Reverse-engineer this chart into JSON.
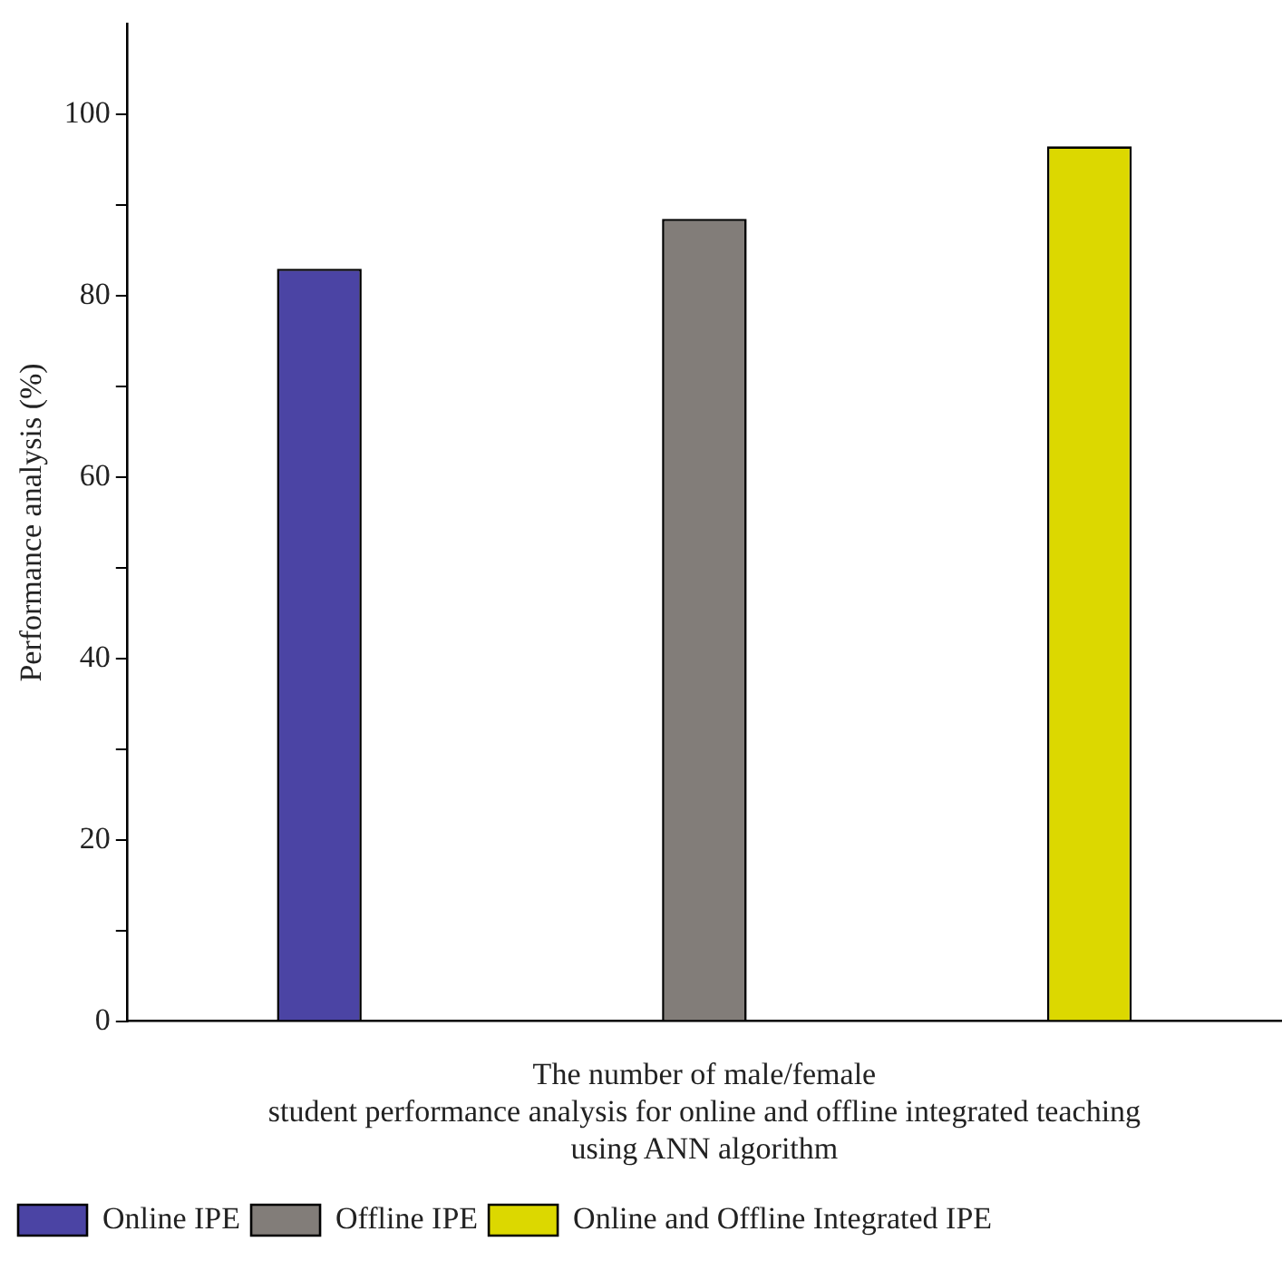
{
  "chart_data": {
    "type": "bar",
    "ylabel": "Performance analysis (%)",
    "xlabel": "The number of male/female\nstudent performance analysis for online and offline integrated teaching\nusing ANN algorithm",
    "categories": [
      null,
      null,
      null
    ],
    "series": [
      {
        "name": "Online IPE",
        "color": "#4b44a4",
        "values": [
          83,
          null,
          null
        ]
      },
      {
        "name": "Offline IPE",
        "color": "#827d79",
        "values": [
          null,
          88.5,
          null
        ]
      },
      {
        "name": "Online and Offline Integrated IPE",
        "color": "#dcd800",
        "values": [
          null,
          null,
          96.5
        ]
      }
    ],
    "ylim": [
      0,
      110
    ],
    "yticks": [
      0,
      {
        "value": 10,
        "label": null
      },
      20,
      {
        "value": 30,
        "label": null
      },
      40,
      {
        "value": 50,
        "label": null
      },
      60,
      {
        "value": 70,
        "label": null
      },
      80,
      {
        "value": 90,
        "label": null
      },
      100
    ],
    "tick_labels": "y",
    "legend": "bottom left"
  }
}
